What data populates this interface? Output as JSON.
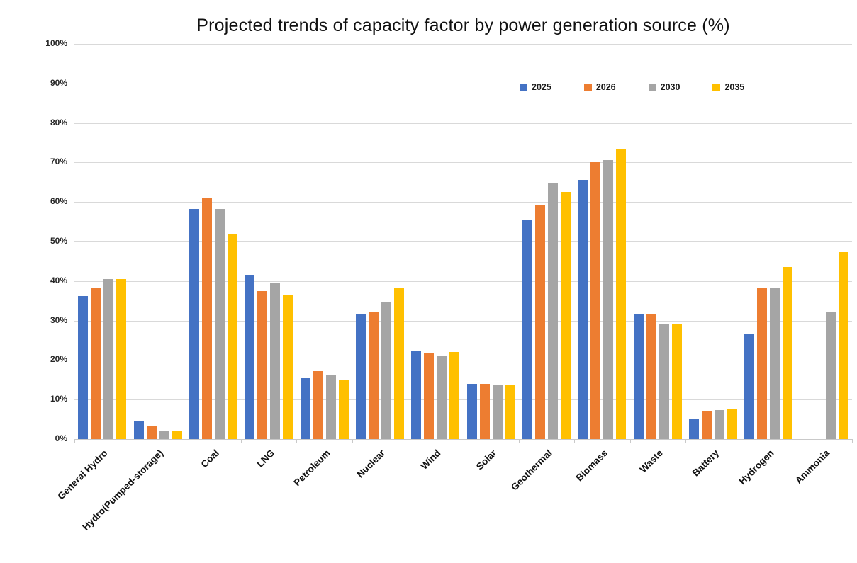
{
  "title": "Projected trends of capacity factor by power generation source (%)",
  "chart_data": {
    "type": "bar",
    "title": "Projected trends of capacity factor by power generation source (%)",
    "xlabel": "",
    "ylabel": "",
    "ylim": [
      0,
      100
    ],
    "y_ticks": [
      "0%",
      "10%",
      "20%",
      "30%",
      "40%",
      "50%",
      "60%",
      "70%",
      "80%",
      "90%",
      "100%"
    ],
    "grid": true,
    "legend_position": "top-right",
    "categories": [
      "General Hydro",
      "Hydro(Pumped-storage)",
      "Coal",
      "LNG",
      "Petroleum",
      "Nuclear",
      "Wind",
      "Solar",
      "Geothermal",
      "Biomass",
      "Waste",
      "Battery",
      "Hydrogen",
      "Ammonia"
    ],
    "series": [
      {
        "name": "2025",
        "color": "#4472C4",
        "values": [
          36.2,
          4.4,
          58.2,
          41.5,
          15.4,
          31.6,
          22.4,
          13.9,
          55.5,
          65.6,
          31.5,
          5.0,
          26.5,
          0
        ]
      },
      {
        "name": "2026",
        "color": "#ED7D31",
        "values": [
          38.3,
          3.2,
          61.2,
          37.4,
          17.3,
          32.3,
          21.8,
          13.9,
          59.4,
          70.0,
          31.5,
          7.0,
          38.1,
          0
        ]
      },
      {
        "name": "2030",
        "color": "#A5A5A5",
        "values": [
          40.6,
          2.1,
          58.2,
          39.7,
          16.4,
          34.7,
          21.0,
          13.8,
          64.8,
          70.7,
          29.0,
          7.3,
          38.1,
          32.0
        ]
      },
      {
        "name": "2035",
        "color": "#FFC000",
        "values": [
          40.6,
          2.0,
          52.0,
          36.5,
          15.1,
          38.2,
          22.1,
          13.6,
          62.6,
          73.3,
          29.3,
          7.5,
          43.5,
          47.4
        ]
      }
    ]
  }
}
